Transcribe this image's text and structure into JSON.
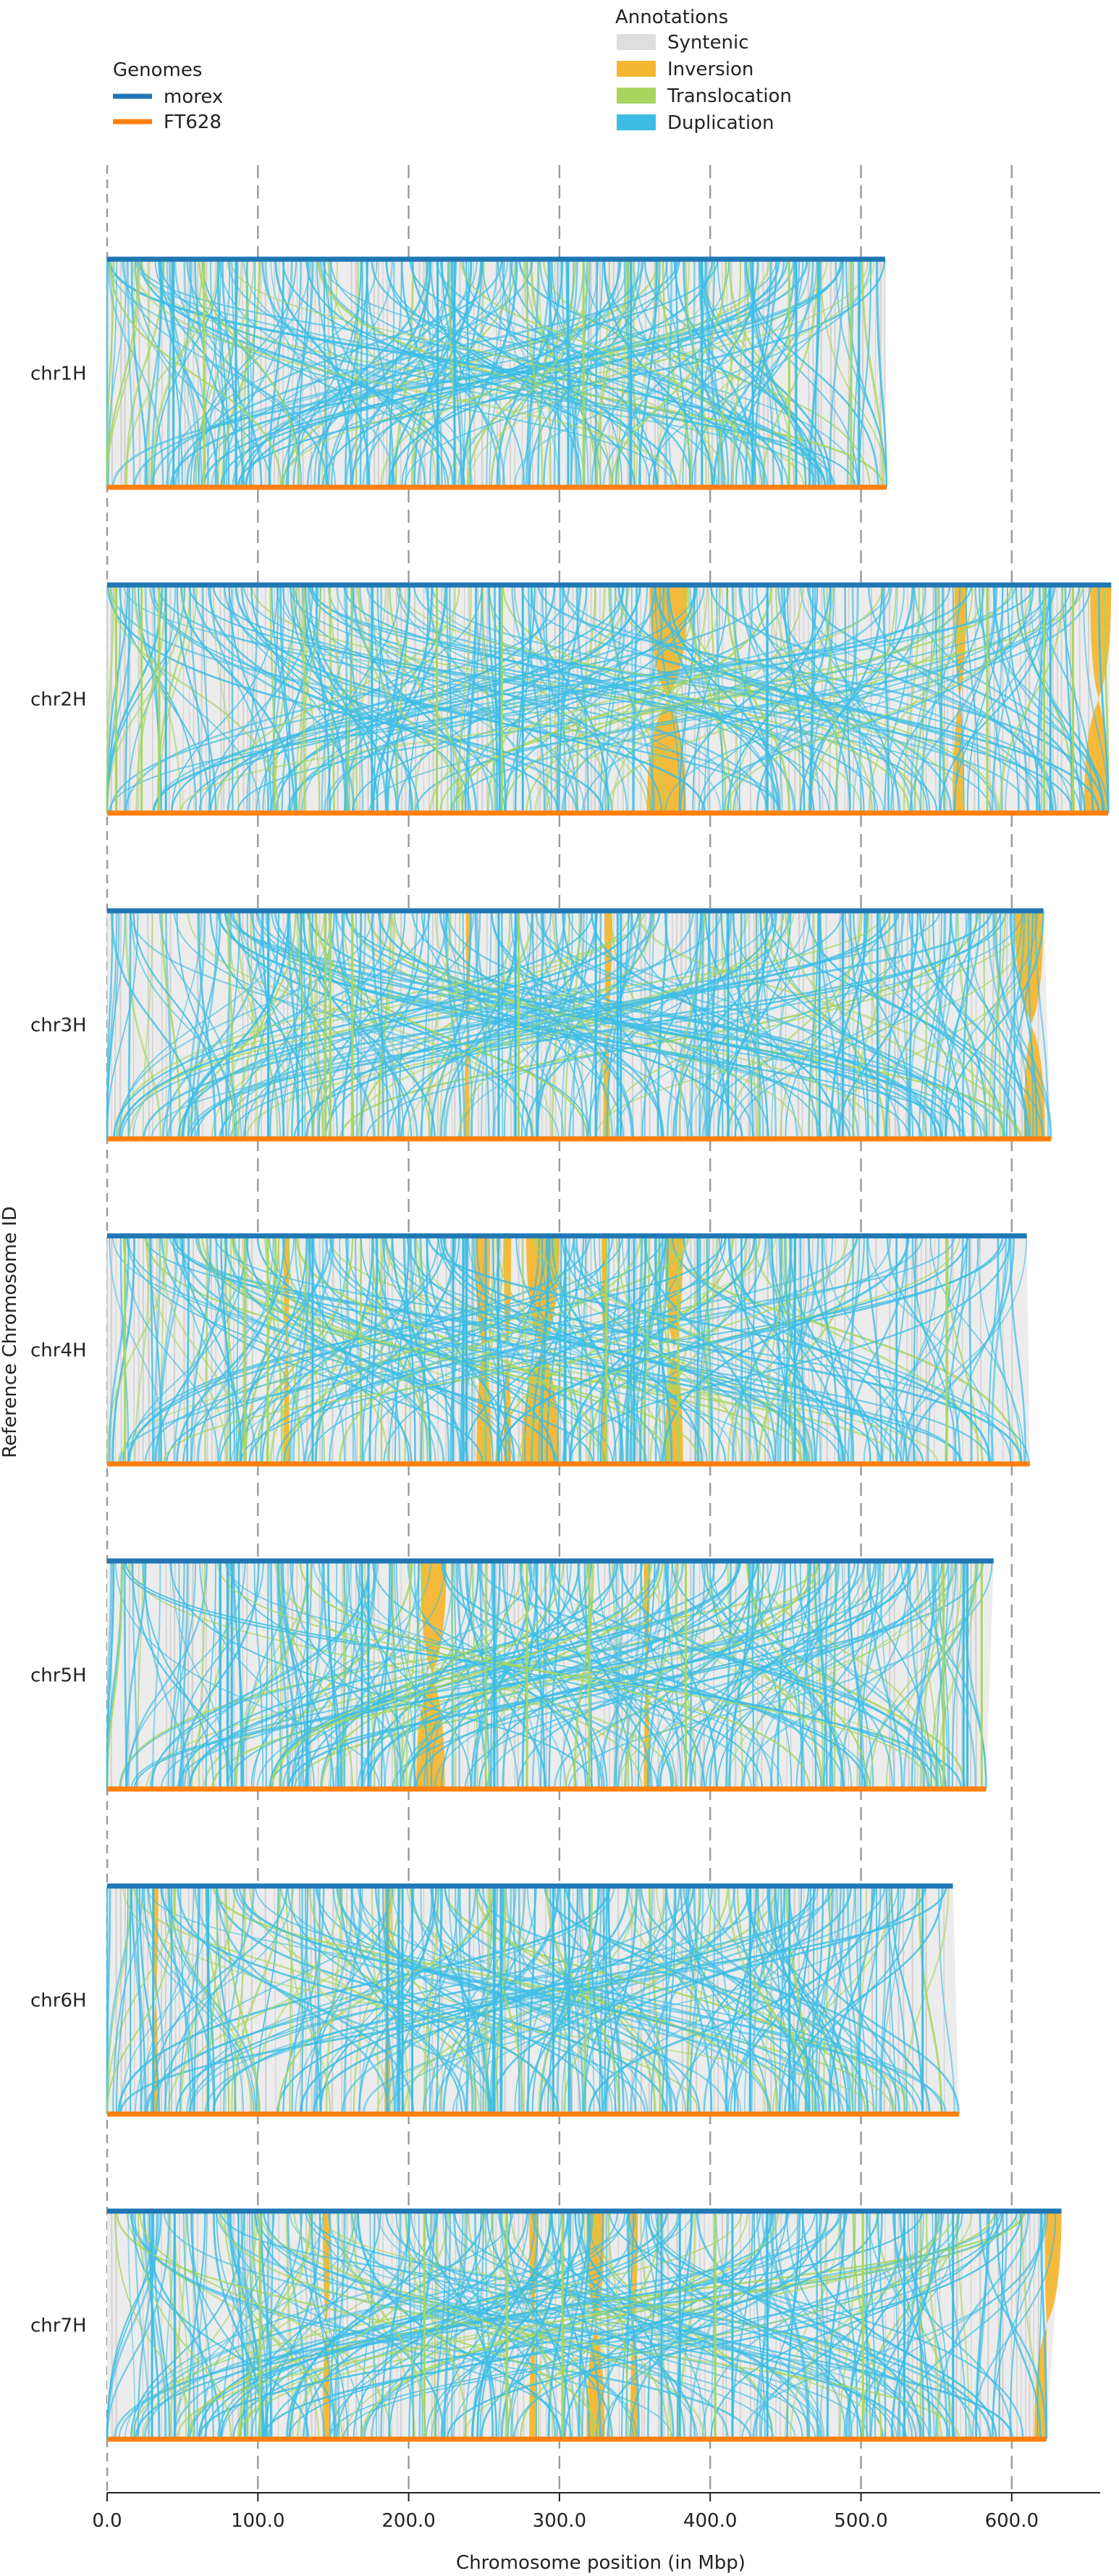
{
  "chart_data": {
    "type": "synteny",
    "xlabel": "Chromosome position (in Mbp)",
    "ylabel": "Reference Chromosome ID",
    "xlim": [
      0,
      670
    ],
    "x_ticks": [
      0,
      100,
      200,
      300,
      400,
      500,
      600
    ],
    "x_tick_labels": [
      "0.0",
      "100.0",
      "200.0",
      "300.0",
      "400.0",
      "500.0",
      "600.0"
    ],
    "grid": "vertical dashed at ticks",
    "legends": {
      "genomes": {
        "title": "Genomes",
        "items": [
          {
            "label": "morex",
            "color": "#1f77b4"
          },
          {
            "label": "FT628",
            "color": "#ff7f0e"
          }
        ]
      },
      "annotations": {
        "title": "Annotations",
        "items": [
          {
            "label": "Syntenic",
            "color": "#dedede"
          },
          {
            "label": "Inversion",
            "color": "#f5b731"
          },
          {
            "label": "Translocation",
            "color": "#a8d55e"
          },
          {
            "label": "Duplication",
            "color": "#3dbde6"
          }
        ]
      }
    },
    "chromosomes": [
      {
        "id": "chr1H",
        "ref_length": 516,
        "qry_length": 517,
        "inversions": []
      },
      {
        "id": "chr2H",
        "ref_length": 666,
        "qry_length": 664,
        "inversions": [
          {
            "ref": [
              360,
              385
            ],
            "qry": [
              358,
              384
            ]
          },
          {
            "ref": [
              562,
              570
            ],
            "qry": [
              561,
              568
            ]
          },
          {
            "ref": [
              652,
              666
            ],
            "qry": [
              648,
              664
            ]
          }
        ]
      },
      {
        "id": "chr3H",
        "ref_length": 621,
        "qry_length": 626,
        "inversions": [
          {
            "ref": [
              238,
              241
            ],
            "qry": [
              237,
              240
            ]
          },
          {
            "ref": [
              330,
              335
            ],
            "qry": [
              329,
              333
            ]
          },
          {
            "ref": [
              602,
              621
            ],
            "qry": [
              608,
              622
            ]
          }
        ]
      },
      {
        "id": "chr4H",
        "ref_length": 610,
        "qry_length": 612,
        "inversions": [
          {
            "ref": [
              117,
              121
            ],
            "qry": [
              117,
              121
            ]
          },
          {
            "ref": [
              244,
              254
            ],
            "qry": [
              245,
              255
            ]
          },
          {
            "ref": [
              263,
              268
            ],
            "qry": [
              263,
              268
            ]
          },
          {
            "ref": [
              278,
              300
            ],
            "qry": [
              275,
              300
            ]
          },
          {
            "ref": [
              328,
              331
            ],
            "qry": [
              328,
              331
            ]
          },
          {
            "ref": [
              370,
              382
            ],
            "qry": [
              370,
              382
            ]
          }
        ]
      },
      {
        "id": "chr5H",
        "ref_length": 588,
        "qry_length": 583,
        "inversions": [
          {
            "ref": [
              208,
              225
            ],
            "qry": [
              205,
              224
            ]
          },
          {
            "ref": [
              356,
              360
            ],
            "qry": [
              356,
              360
            ]
          }
        ]
      },
      {
        "id": "chr6H",
        "ref_length": 561,
        "qry_length": 565,
        "inversions": [
          {
            "ref": [
              30,
              34
            ],
            "qry": [
              30,
              34
            ]
          },
          {
            "ref": [
              184,
              188
            ],
            "qry": [
              184,
              188
            ]
          }
        ]
      },
      {
        "id": "chr7H",
        "ref_length": 633,
        "qry_length": 623,
        "inversions": [
          {
            "ref": [
              143,
              148
            ],
            "qry": [
              143,
              148
            ]
          },
          {
            "ref": [
              280,
              285
            ],
            "qry": [
              280,
              285
            ]
          },
          {
            "ref": [
              318,
              330
            ],
            "qry": [
              318,
              330
            ]
          },
          {
            "ref": [
              347,
              352
            ],
            "qry": [
              347,
              352
            ]
          },
          {
            "ref": [
              622,
              633
            ],
            "qry": [
              615,
              623
            ]
          }
        ]
      }
    ]
  }
}
